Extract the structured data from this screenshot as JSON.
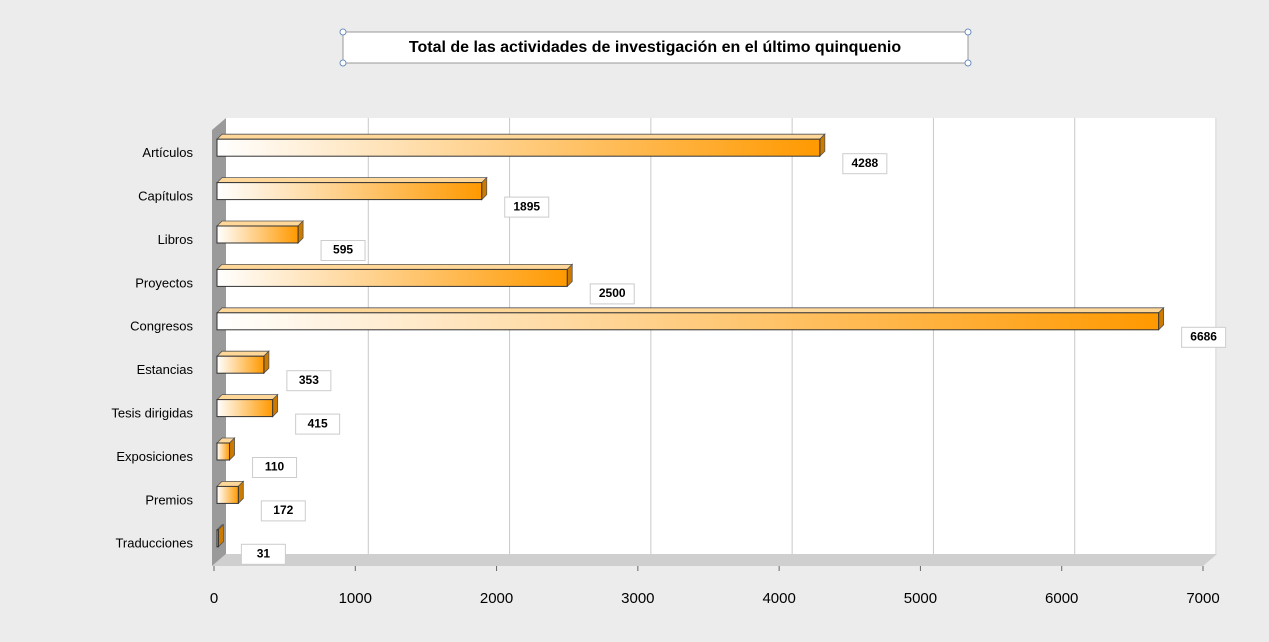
{
  "chart_data": {
    "type": "bar",
    "orientation": "horizontal",
    "title": "Total de las actividades de investigación en el último quinquenio",
    "categories": [
      "Artículos",
      "Capítulos",
      "Libros",
      "Proyectos",
      "Congresos",
      "Estancias",
      "Tesis dirigidas",
      "Exposiciones",
      "Premios",
      "Traducciones"
    ],
    "values": [
      4288,
      1895,
      595,
      2500,
      6686,
      353,
      415,
      110,
      172,
      31
    ],
    "color": "#ff9900",
    "xlim": [
      0,
      7000
    ],
    "xticks": [
      0,
      1000,
      2000,
      3000,
      4000,
      5000,
      6000,
      7000
    ],
    "grid": true
  }
}
